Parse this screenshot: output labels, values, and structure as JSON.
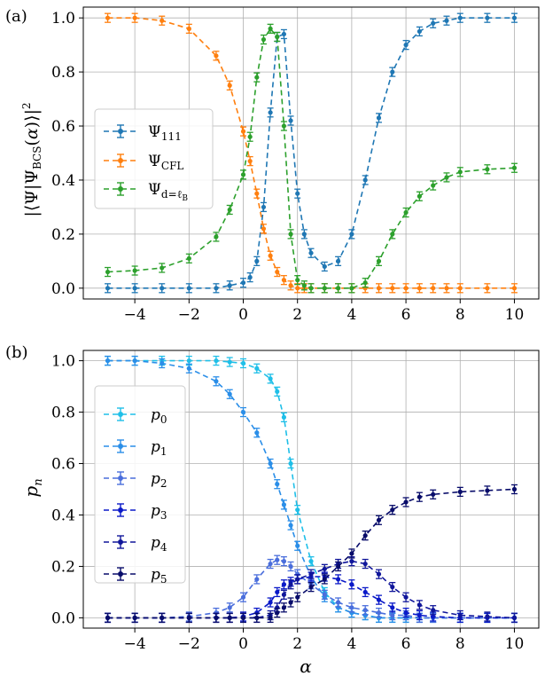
{
  "colors": {
    "psi111": "#1f77b4",
    "cfl": "#ff7f0e",
    "dlb": "#2ca02c",
    "p0": "#1fbfe8",
    "p1": "#2a8ee8",
    "p2": "#4a6edc",
    "p3": "#0a19c8",
    "p4": "#10169a",
    "p5": "#080c6a"
  },
  "chart_data": [
    {
      "panel": "(a)",
      "type": "line",
      "xlabel": "",
      "ylabel": "|⟨Ψ|Ψ_BCS(α)⟩|²",
      "xlim": [
        -5.9,
        10.9
      ],
      "ylim": [
        -0.04,
        1.04
      ],
      "xticks": [
        -4,
        -2,
        0,
        2,
        4,
        6,
        8,
        10
      ],
      "xticklabels": [
        "−4",
        "−2",
        "0",
        "2",
        "4",
        "6",
        "8",
        "10"
      ],
      "yticks": [
        0.0,
        0.2,
        0.4,
        0.6,
        0.8,
        1.0
      ],
      "yticklabels": [
        "0.0",
        "0.2",
        "0.4",
        "0.6",
        "0.8",
        "1.0"
      ],
      "grid": true,
      "legend": "center-left",
      "x": [
        -5,
        -4,
        -3,
        -2,
        -1,
        -0.5,
        0,
        0.25,
        0.5,
        0.75,
        1,
        1.25,
        1.5,
        1.75,
        2,
        2.25,
        2.5,
        3,
        3.5,
        4,
        4.5,
        5,
        5.5,
        6,
        6.5,
        7,
        7.5,
        8,
        9,
        10
      ],
      "series": [
        {
          "name": "Ψ111",
          "color_key": "psi111",
          "values": [
            0.0,
            0.0,
            0.0,
            0.0,
            0.0,
            0.01,
            0.02,
            0.04,
            0.1,
            0.3,
            0.65,
            0.93,
            0.94,
            0.62,
            0.35,
            0.2,
            0.13,
            0.08,
            0.1,
            0.2,
            0.4,
            0.63,
            0.8,
            0.9,
            0.95,
            0.98,
            0.99,
            1.0,
            1.0,
            1.0
          ]
        },
        {
          "name": "ΨCFL",
          "color_key": "cfl",
          "values": [
            1.0,
            1.0,
            0.99,
            0.96,
            0.86,
            0.75,
            0.58,
            0.47,
            0.35,
            0.22,
            0.12,
            0.06,
            0.03,
            0.01,
            0.0,
            0.0,
            0.0,
            0.0,
            0.0,
            0.0,
            0.0,
            0.0,
            0.0,
            0.0,
            0.0,
            0.0,
            0.0,
            0.0,
            0.0,
            0.0
          ]
        },
        {
          "name": "Ψd=ℓB",
          "color_key": "dlb",
          "values": [
            0.06,
            0.065,
            0.075,
            0.11,
            0.19,
            0.29,
            0.42,
            0.56,
            0.78,
            0.92,
            0.96,
            0.93,
            0.6,
            0.2,
            0.03,
            0.01,
            0.0,
            0.0,
            0.0,
            0.0,
            0.02,
            0.1,
            0.2,
            0.28,
            0.34,
            0.38,
            0.41,
            0.43,
            0.44,
            0.445
          ]
        }
      ]
    },
    {
      "panel": "(b)",
      "type": "line",
      "xlabel": "α",
      "ylabel": "p_n",
      "xlim": [
        -5.9,
        10.9
      ],
      "ylim": [
        -0.04,
        1.04
      ],
      "xticks": [
        -4,
        -2,
        0,
        2,
        4,
        6,
        8,
        10
      ],
      "xticklabels": [
        "−4",
        "−2",
        "0",
        "2",
        "4",
        "6",
        "8",
        "10"
      ],
      "yticks": [
        0.0,
        0.2,
        0.4,
        0.6,
        0.8,
        1.0
      ],
      "yticklabels": [
        "0.0",
        "0.2",
        "0.4",
        "0.6",
        "0.8",
        "1.0"
      ],
      "grid": true,
      "legend": "center-left",
      "x": [
        -5,
        -4,
        -3,
        -2,
        -1,
        -0.5,
        0,
        0.5,
        1,
        1.25,
        1.5,
        1.75,
        2,
        2.5,
        3,
        3.5,
        4,
        4.5,
        5,
        5.5,
        6,
        6.5,
        7,
        8,
        9,
        10
      ],
      "series": [
        {
          "name": "p0",
          "color_key": "p0",
          "values": [
            1.0,
            1.0,
            1.0,
            1.0,
            1.0,
            0.995,
            0.99,
            0.97,
            0.93,
            0.88,
            0.78,
            0.6,
            0.42,
            0.22,
            0.1,
            0.04,
            0.02,
            0.01,
            0.0,
            0.0,
            0.0,
            0.0,
            0.0,
            0.0,
            0.0,
            0.0
          ]
        },
        {
          "name": "p1",
          "color_key": "p1",
          "values": [
            1.0,
            1.0,
            0.99,
            0.97,
            0.92,
            0.87,
            0.8,
            0.72,
            0.6,
            0.52,
            0.44,
            0.36,
            0.28,
            0.16,
            0.08,
            0.04,
            0.02,
            0.01,
            0.0,
            0.0,
            0.0,
            0.0,
            0.0,
            0.0,
            0.0,
            0.0
          ]
        },
        {
          "name": "p2",
          "color_key": "p2",
          "values": [
            0.0,
            0.0,
            0.0,
            0.005,
            0.02,
            0.04,
            0.08,
            0.15,
            0.21,
            0.225,
            0.22,
            0.2,
            0.17,
            0.13,
            0.09,
            0.06,
            0.04,
            0.03,
            0.02,
            0.01,
            0.01,
            0.0,
            0.0,
            0.0,
            0.0,
            0.0
          ]
        },
        {
          "name": "p3",
          "color_key": "p3",
          "values": [
            0.0,
            0.0,
            0.0,
            0.0,
            0.0,
            0.0,
            0.005,
            0.02,
            0.06,
            0.1,
            0.13,
            0.14,
            0.15,
            0.16,
            0.16,
            0.15,
            0.13,
            0.1,
            0.07,
            0.04,
            0.02,
            0.01,
            0.005,
            0.0,
            0.0,
            0.0
          ]
        },
        {
          "name": "p4",
          "color_key": "p4",
          "values": [
            0.0,
            0.0,
            0.0,
            0.0,
            0.0,
            0.0,
            0.0,
            0.0,
            0.01,
            0.04,
            0.09,
            0.13,
            0.15,
            0.17,
            0.19,
            0.21,
            0.22,
            0.21,
            0.17,
            0.12,
            0.08,
            0.05,
            0.03,
            0.01,
            0.005,
            0.0
          ]
        },
        {
          "name": "p5",
          "color_key": "p5",
          "values": [
            0.0,
            0.0,
            0.0,
            0.0,
            0.0,
            0.0,
            0.0,
            0.0,
            0.0,
            0.02,
            0.04,
            0.06,
            0.08,
            0.12,
            0.15,
            0.2,
            0.25,
            0.32,
            0.38,
            0.42,
            0.45,
            0.47,
            0.48,
            0.49,
            0.495,
            0.5
          ]
        }
      ]
    }
  ]
}
